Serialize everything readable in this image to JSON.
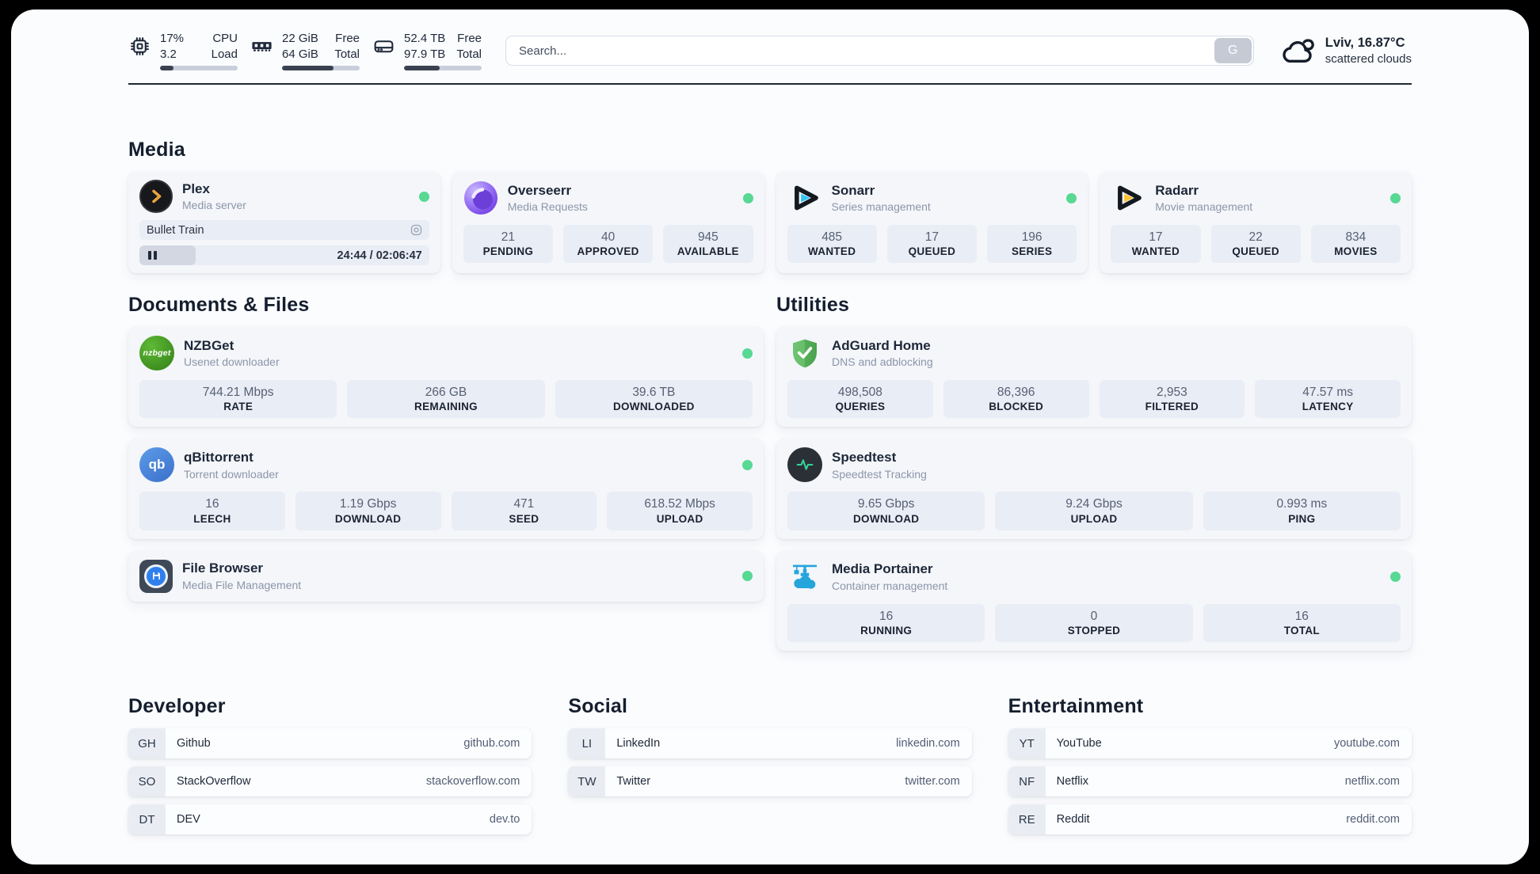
{
  "colors": {
    "status_online": "#57d893",
    "accent_dark": "#1e2735",
    "stat_box": "#e9edf5"
  },
  "topbar": {
    "cpu": {
      "values": [
        "17%",
        "3.2"
      ],
      "labels": [
        "CPU",
        "Load"
      ],
      "progress_pct": 17
    },
    "ram": {
      "values": [
        "22 GiB",
        "64 GiB"
      ],
      "labels": [
        "Free",
        "Total"
      ],
      "progress_pct": 66
    },
    "disk": {
      "values": [
        "52.4 TB",
        "97.9 TB"
      ],
      "labels": [
        "Free",
        "Total"
      ],
      "progress_pct": 46
    },
    "search": {
      "placeholder": "Search...",
      "button_label": "G"
    },
    "weather": {
      "line1": "Lviv, 16.87°C",
      "line2": "scattered clouds"
    }
  },
  "sections": {
    "media": {
      "title": "Media",
      "plex": {
        "name": "Plex",
        "subtitle": "Media server",
        "now_playing": "Bullet Train",
        "time": "24:44 / 02:06:47",
        "progress_pct": 19.5
      },
      "overseerr": {
        "name": "Overseerr",
        "subtitle": "Media Requests",
        "stats": [
          {
            "value": "21",
            "label": "PENDING"
          },
          {
            "value": "40",
            "label": "APPROVED"
          },
          {
            "value": "945",
            "label": "AVAILABLE"
          }
        ]
      },
      "sonarr": {
        "name": "Sonarr",
        "subtitle": "Series management",
        "stats": [
          {
            "value": "485",
            "label": "WANTED"
          },
          {
            "value": "17",
            "label": "QUEUED"
          },
          {
            "value": "196",
            "label": "SERIES"
          }
        ]
      },
      "radarr": {
        "name": "Radarr",
        "subtitle": "Movie management",
        "stats": [
          {
            "value": "17",
            "label": "WANTED"
          },
          {
            "value": "22",
            "label": "QUEUED"
          },
          {
            "value": "834",
            "label": "MOVIES"
          }
        ]
      }
    },
    "documents": {
      "title": "Documents & Files",
      "nzbget": {
        "name": "NZBGet",
        "subtitle": "Usenet downloader",
        "icon_text": "nzbget",
        "stats": [
          {
            "value": "744.21 Mbps",
            "label": "RATE"
          },
          {
            "value": "266 GB",
            "label": "REMAINING"
          },
          {
            "value": "39.6 TB",
            "label": "DOWNLOADED"
          }
        ]
      },
      "qbittorrent": {
        "name": "qBittorrent",
        "subtitle": "Torrent downloader",
        "icon_text": "qb",
        "stats": [
          {
            "value": "16",
            "label": "LEECH"
          },
          {
            "value": "1.19 Gbps",
            "label": "DOWNLOAD"
          },
          {
            "value": "471",
            "label": "SEED"
          },
          {
            "value": "618.52 Mbps",
            "label": "UPLOAD"
          }
        ]
      },
      "filebrowser": {
        "name": "File Browser",
        "subtitle": "Media File Management"
      }
    },
    "utilities": {
      "title": "Utilities",
      "adguard": {
        "name": "AdGuard Home",
        "subtitle": "DNS and adblocking",
        "stats": [
          {
            "value": "498,508",
            "label": "QUERIES"
          },
          {
            "value": "86,396",
            "label": "BLOCKED"
          },
          {
            "value": "2,953",
            "label": "FILTERED"
          },
          {
            "value": "47.57 ms",
            "label": "LATENCY"
          }
        ]
      },
      "speedtest": {
        "name": "Speedtest",
        "subtitle": "Speedtest Tracking",
        "stats": [
          {
            "value": "9.65 Gbps",
            "label": "DOWNLOAD"
          },
          {
            "value": "9.24 Gbps",
            "label": "UPLOAD"
          },
          {
            "value": "0.993 ms",
            "label": "PING"
          }
        ]
      },
      "portainer": {
        "name": "Media Portainer",
        "subtitle": "Container management",
        "stats": [
          {
            "value": "16",
            "label": "RUNNING"
          },
          {
            "value": "0",
            "label": "STOPPED"
          },
          {
            "value": "16",
            "label": "TOTAL"
          }
        ]
      }
    },
    "developer": {
      "title": "Developer",
      "links": [
        {
          "abbr": "GH",
          "name": "Github",
          "url": "github.com"
        },
        {
          "abbr": "SO",
          "name": "StackOverflow",
          "url": "stackoverflow.com"
        },
        {
          "abbr": "DT",
          "name": "DEV",
          "url": "dev.to"
        }
      ]
    },
    "social": {
      "title": "Social",
      "links": [
        {
          "abbr": "LI",
          "name": "LinkedIn",
          "url": "linkedin.com"
        },
        {
          "abbr": "TW",
          "name": "Twitter",
          "url": "twitter.com"
        }
      ]
    },
    "entertainment": {
      "title": "Entertainment",
      "links": [
        {
          "abbr": "YT",
          "name": "YouTube",
          "url": "youtube.com"
        },
        {
          "abbr": "NF",
          "name": "Netflix",
          "url": "netflix.com"
        },
        {
          "abbr": "RE",
          "name": "Reddit",
          "url": "reddit.com"
        }
      ]
    }
  }
}
